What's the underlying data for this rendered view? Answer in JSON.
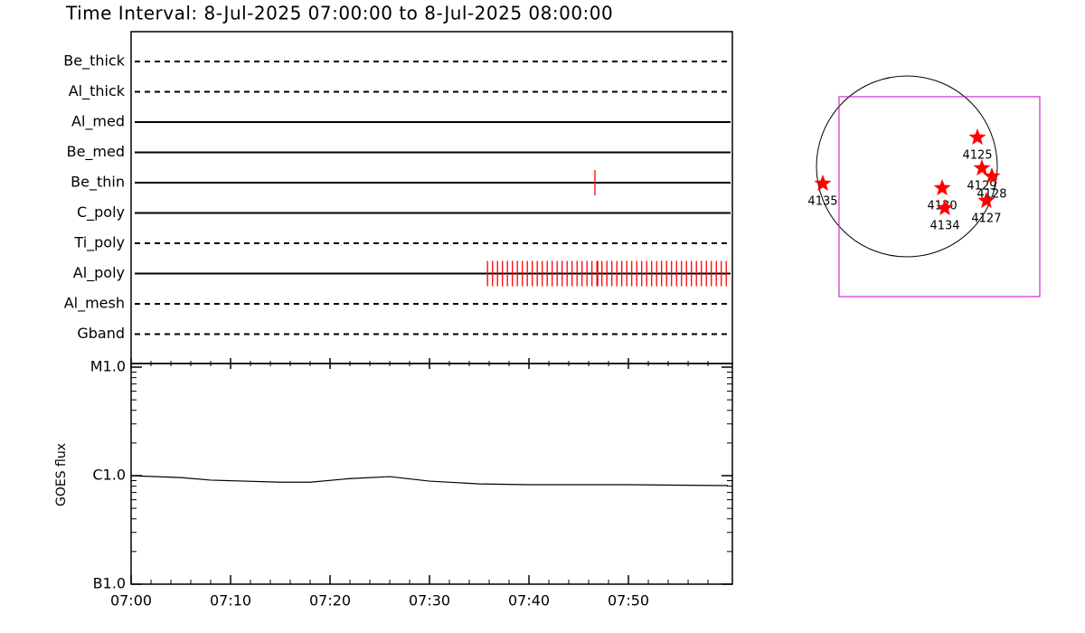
{
  "title": "Time Interval:  8-Jul-2025 07:00:00 to  8-Jul-2025 08:00:00",
  "timeline": {
    "xlim": [
      "07:00:00",
      "08:00:27"
    ],
    "exposure_color": "#ff0000",
    "rows": [
      {
        "name": "Be_thick",
        "style": "dashed",
        "exposures": []
      },
      {
        "name": "Al_thick",
        "style": "dashed",
        "exposures": []
      },
      {
        "name": "Al_med",
        "style": "solid",
        "exposures": []
      },
      {
        "name": "Be_med",
        "style": "solid",
        "exposures": []
      },
      {
        "name": "Be_thin",
        "style": "solid",
        "exposures": [
          "07:46:38"
        ]
      },
      {
        "name": "C_poly",
        "style": "solid",
        "exposures": []
      },
      {
        "name": "Ti_poly",
        "style": "dashed",
        "exposures": []
      },
      {
        "name": "Al_poly",
        "style": "solid",
        "exposures": [
          "07:35:50",
          "07:36:20",
          "07:36:50",
          "07:37:20",
          "07:37:50",
          "07:38:20",
          "07:38:50",
          "07:39:20",
          "07:39:50",
          "07:40:20",
          "07:40:50",
          "07:41:20",
          "07:41:50",
          "07:42:20",
          "07:42:50",
          "07:43:20",
          "07:43:50",
          "07:44:20",
          "07:44:50",
          "07:45:20",
          "07:45:50",
          "07:46:20",
          "07:46:50",
          "07:46:55",
          "07:47:20",
          "07:47:50",
          "07:48:20",
          "07:48:50",
          "07:49:20",
          "07:49:50",
          "07:50:20",
          "07:50:50",
          "07:51:20",
          "07:51:50",
          "07:52:20",
          "07:52:50",
          "07:53:20",
          "07:53:50",
          "07:54:20",
          "07:54:50",
          "07:55:20",
          "07:55:50",
          "07:56:20",
          "07:56:50",
          "07:57:20",
          "07:57:50",
          "07:58:20",
          "07:58:50",
          "07:59:20",
          "07:59:50"
        ]
      },
      {
        "name": "Al_mesh",
        "style": "dashed",
        "exposures": []
      },
      {
        "name": "Gband",
        "style": "dashed",
        "exposures": []
      }
    ]
  },
  "chart_data": {
    "type": "line",
    "ylabel": "GOES flux",
    "log": true,
    "color": "#000000",
    "x": [
      "07:00",
      "07:05",
      "07:08",
      "07:15",
      "07:18",
      "07:22",
      "07:26",
      "07:30",
      "07:35",
      "07:40",
      "07:50",
      "08:00"
    ],
    "values": [
      1e-06,
      9.6e-07,
      9.1e-07,
      8.7e-07,
      8.7e-07,
      9.4e-07,
      9.8e-07,
      8.9e-07,
      8.4e-07,
      8.25e-07,
      8.25e-07,
      8.1e-07
    ],
    "xlim": [
      "07:00",
      "08:00:27"
    ],
    "xticks": [
      "07:00",
      "07:10",
      "07:20",
      "07:30",
      "07:40",
      "07:50"
    ],
    "ylim": [
      1e-07,
      1.08e-05
    ],
    "yticks": [
      {
        "value": 1e-05,
        "label": "M1.0"
      },
      {
        "value": 1e-06,
        "label": "C1.0"
      },
      {
        "value": 1e-07,
        "label": "B1.0"
      }
    ]
  },
  "map": {
    "fov_color": "#cc00cc",
    "region_color": "#ff0000",
    "fov": {
      "x0": -709,
      "x1": 1389,
      "y0": -1361,
      "y1": 728
    },
    "regions": [
      {
        "label": "4125",
        "x": 737,
        "y": 302
      },
      {
        "label": "4129",
        "x": 784,
        "y": -19
      },
      {
        "label": "4128",
        "x": 888,
        "y": -104
      },
      {
        "label": "4130",
        "x": 369,
        "y": -227
      },
      {
        "label": "4134",
        "x": 397,
        "y": -435
      },
      {
        "label": "4127",
        "x": 831,
        "y": -359
      },
      {
        "label": "4135",
        "x": -879,
        "y": -180
      }
    ]
  }
}
